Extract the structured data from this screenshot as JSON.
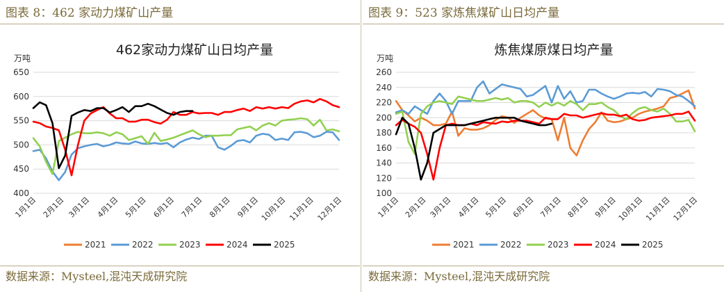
{
  "left": {
    "figure_title": "图表 8：462 家动力煤矿山产量",
    "source": "数据来源：Mysteel,混沌天成研究院"
  },
  "right": {
    "figure_title": "图表 9：523 家炼焦煤矿山日均产量",
    "source": "数据来源：Mysteel,混沌天成研究院"
  },
  "colors": {
    "2021": "#ed7d31",
    "2022": "#5b9bd5",
    "2023": "#92d050",
    "2024": "#ff0000",
    "2025": "#000000"
  },
  "chart_data": [
    {
      "type": "line",
      "title": "462家动力煤矿山日均产量",
      "ylabel": "万吨",
      "ylim": [
        400,
        650
      ],
      "yticks": [
        400,
        450,
        500,
        550,
        600,
        650
      ],
      "xlim": [
        1,
        49
      ],
      "x_tick_labels": [
        "1月1日",
        "2月1日",
        "3月1日",
        "4月1日",
        "5月1日",
        "6月1日",
        "7月1日",
        "8月1日",
        "9月1日",
        "10月1日",
        "11月1日",
        "12月1日"
      ],
      "x_tick_weeks": [
        1,
        5.4,
        9.4,
        13.9,
        18.3,
        22.7,
        27.1,
        31.5,
        35.9,
        40.2,
        44.6,
        49
      ],
      "legend": [
        "2021",
        "2022",
        "2023",
        "2024",
        "2025"
      ],
      "series": [
        {
          "name": "2022",
          "x": [
            1,
            2,
            3,
            4,
            5,
            6,
            7,
            8,
            9,
            10,
            11,
            12,
            13,
            14,
            15,
            16,
            17,
            18,
            19,
            20,
            21,
            22,
            23,
            24,
            25,
            26,
            27,
            28,
            29,
            30,
            31,
            32,
            33,
            34,
            35,
            36,
            37,
            38,
            39,
            40,
            41,
            42,
            43,
            44,
            45,
            46,
            47,
            48,
            49
          ],
          "values": [
            487,
            490,
            472,
            445,
            427,
            444,
            480,
            493,
            497,
            500,
            502,
            497,
            500,
            505,
            503,
            502,
            507,
            503,
            502,
            504,
            502,
            504,
            495,
            505,
            511,
            515,
            512,
            519,
            519,
            495,
            490,
            498,
            508,
            510,
            505,
            519,
            523,
            521,
            510,
            513,
            510,
            526,
            527,
            524,
            516,
            519,
            527,
            526,
            510
          ]
        },
        {
          "name": "2023",
          "x": [
            1,
            2,
            3,
            4,
            5,
            6,
            7,
            8,
            9,
            10,
            11,
            12,
            13,
            14,
            15,
            16,
            17,
            18,
            19,
            20,
            21,
            22,
            23,
            24,
            25,
            26,
            27,
            28,
            29,
            30,
            31,
            32,
            33,
            34,
            35,
            36,
            37,
            38,
            39,
            40,
            41,
            42,
            43,
            44,
            45,
            46,
            47,
            48,
            49
          ],
          "values": [
            514,
            497,
            465,
            440,
            508,
            515,
            522,
            527,
            524,
            524,
            526,
            524,
            519,
            526,
            522,
            510,
            514,
            518,
            502,
            525,
            508,
            511,
            515,
            520,
            525,
            530,
            522,
            516,
            519,
            519,
            520,
            520,
            532,
            535,
            538,
            530,
            540,
            545,
            540,
            550,
            552,
            553,
            555,
            553,
            540,
            552,
            530,
            532,
            528
          ]
        },
        {
          "name": "2024",
          "x": [
            1,
            2,
            3,
            4,
            5,
            6,
            7,
            8,
            9,
            10,
            11,
            12,
            13,
            14,
            15,
            16,
            17,
            18,
            19,
            20,
            21,
            22,
            23,
            24,
            25,
            26,
            27,
            28,
            29,
            30,
            31,
            32,
            33,
            34,
            35,
            36,
            37,
            38,
            39,
            40,
            41,
            42,
            43,
            44,
            45,
            46,
            47,
            48,
            49
          ],
          "values": [
            548,
            545,
            538,
            535,
            530,
            490,
            437,
            500,
            550,
            565,
            572,
            578,
            565,
            555,
            555,
            548,
            548,
            552,
            552,
            547,
            544,
            552,
            568,
            562,
            562,
            568,
            565,
            566,
            566,
            562,
            568,
            568,
            572,
            575,
            570,
            578,
            575,
            578,
            575,
            578,
            576,
            585,
            590,
            592,
            588,
            595,
            590,
            582,
            578
          ]
        },
        {
          "name": "2025",
          "x": [
            1,
            2,
            3,
            4,
            5,
            6,
            7,
            8,
            9,
            10,
            11,
            12,
            13,
            14,
            15,
            16,
            17,
            18,
            19,
            20,
            21,
            22,
            23,
            24,
            25,
            26
          ],
          "values": [
            576,
            588,
            582,
            545,
            452,
            478,
            560,
            567,
            572,
            570,
            576,
            576,
            567,
            572,
            578,
            568,
            580,
            580,
            585,
            580,
            573,
            566,
            562,
            568,
            570,
            570
          ]
        }
      ]
    },
    {
      "type": "line",
      "title": "炼焦煤原煤日均产量",
      "ylabel": "万吨",
      "ylim": [
        100,
        260
      ],
      "yticks": [
        100,
        120,
        140,
        160,
        180,
        200,
        220,
        240,
        260
      ],
      "xlim": [
        1,
        49
      ],
      "x_tick_labels": [
        "1月1日",
        "2月1日",
        "3月1日",
        "4月1日",
        "5月1日",
        "6月1日",
        "7月1日",
        "8月1日",
        "9月1日",
        "10月1日",
        "11月1日",
        "12月1日"
      ],
      "x_tick_weeks": [
        1,
        5.4,
        9.4,
        13.9,
        18.3,
        22.7,
        27.1,
        31.5,
        35.9,
        40.2,
        44.6,
        49
      ],
      "legend": [
        "2021",
        "2022",
        "2023",
        "2024",
        "2025"
      ],
      "series": [
        {
          "name": "2021",
          "x": [
            1,
            2,
            3,
            4,
            5,
            6,
            7,
            8,
            9,
            10,
            11,
            12,
            13,
            14,
            15,
            16,
            17,
            18,
            19,
            20,
            21,
            22,
            23,
            24,
            25,
            26,
            27,
            28,
            29,
            30,
            31,
            32,
            33,
            34,
            35,
            36,
            37,
            38,
            39,
            40,
            41,
            42,
            43,
            44,
            45,
            46,
            47,
            48,
            49
          ],
          "values": [
            222,
            210,
            203,
            195,
            200,
            196,
            190,
            190,
            192,
            208,
            176,
            186,
            184,
            184,
            186,
            190,
            197,
            202,
            200,
            193,
            200,
            205,
            210,
            203,
            199,
            198,
            170,
            200,
            160,
            150,
            170,
            185,
            194,
            207,
            196,
            194,
            195,
            198,
            200,
            205,
            208,
            210,
            212,
            215,
            226,
            228,
            232,
            236,
            212
          ]
        },
        {
          "name": "2022",
          "x": [
            1,
            2,
            3,
            4,
            5,
            6,
            7,
            8,
            9,
            10,
            11,
            12,
            13,
            14,
            15,
            16,
            17,
            18,
            19,
            20,
            21,
            22,
            23,
            24,
            25,
            26,
            27,
            28,
            29,
            30,
            31,
            32,
            33,
            34,
            35,
            36,
            37,
            38,
            39,
            40,
            41,
            42,
            43,
            44,
            45,
            46,
            47,
            48,
            49
          ],
          "values": [
            207,
            210,
            205,
            215,
            210,
            205,
            222,
            232,
            222,
            205,
            222,
            222,
            222,
            240,
            248,
            232,
            238,
            244,
            242,
            240,
            238,
            228,
            230,
            236,
            242,
            220,
            242,
            225,
            235,
            220,
            222,
            237,
            237,
            232,
            228,
            225,
            228,
            232,
            233,
            232,
            234,
            228,
            238,
            237,
            235,
            230,
            228,
            222,
            215
          ]
        },
        {
          "name": "2023",
          "x": [
            1,
            2,
            3,
            4,
            5,
            6,
            7,
            8,
            9,
            10,
            11,
            12,
            13,
            14,
            15,
            16,
            17,
            18,
            19,
            20,
            21,
            22,
            23,
            24,
            25,
            26,
            27,
            28,
            29,
            30,
            31,
            32,
            33,
            34,
            35,
            36,
            37,
            38,
            39,
            40,
            41,
            42,
            43,
            44,
            45,
            46,
            47,
            48,
            49
          ],
          "values": [
            205,
            208,
            168,
            152,
            205,
            215,
            220,
            222,
            220,
            218,
            228,
            226,
            224,
            222,
            222,
            224,
            226,
            224,
            226,
            220,
            222,
            222,
            220,
            214,
            220,
            216,
            220,
            216,
            222,
            218,
            210,
            218,
            218,
            220,
            214,
            210,
            202,
            198,
            206,
            212,
            214,
            210,
            208,
            212,
            205,
            195,
            195,
            197,
            182
          ]
        },
        {
          "name": "2024",
          "x": [
            1,
            2,
            3,
            4,
            5,
            6,
            7,
            8,
            9,
            10,
            11,
            12,
            13,
            14,
            15,
            16,
            17,
            18,
            19,
            20,
            21,
            22,
            23,
            24,
            25,
            26,
            27,
            28,
            29,
            30,
            31,
            32,
            33,
            34,
            35,
            36,
            37,
            38,
            39,
            40,
            41,
            42,
            43,
            44,
            45,
            46,
            47,
            48,
            49
          ],
          "values": [
            190,
            197,
            192,
            188,
            180,
            152,
            118,
            160,
            190,
            192,
            190,
            190,
            192,
            190,
            194,
            193,
            192,
            195,
            194,
            196,
            196,
            196,
            194,
            192,
            200,
            198,
            198,
            205,
            203,
            203,
            200,
            202,
            204,
            206,
            204,
            204,
            202,
            204,
            198,
            196,
            197,
            200,
            201,
            202,
            203,
            205,
            205,
            208,
            196
          ]
        },
        {
          "name": "2025",
          "x": [
            1,
            2,
            3,
            4,
            5,
            6,
            7,
            8,
            9,
            10,
            11,
            12,
            13,
            14,
            15,
            16,
            17,
            18,
            19,
            20,
            21,
            22,
            23,
            24,
            25,
            26
          ],
          "values": [
            178,
            200,
            192,
            160,
            118,
            140,
            180,
            185,
            190,
            190,
            190,
            190,
            192,
            194,
            196,
            198,
            200,
            200,
            200,
            200,
            196,
            194,
            192,
            190,
            190,
            192
          ]
        }
      ]
    }
  ]
}
